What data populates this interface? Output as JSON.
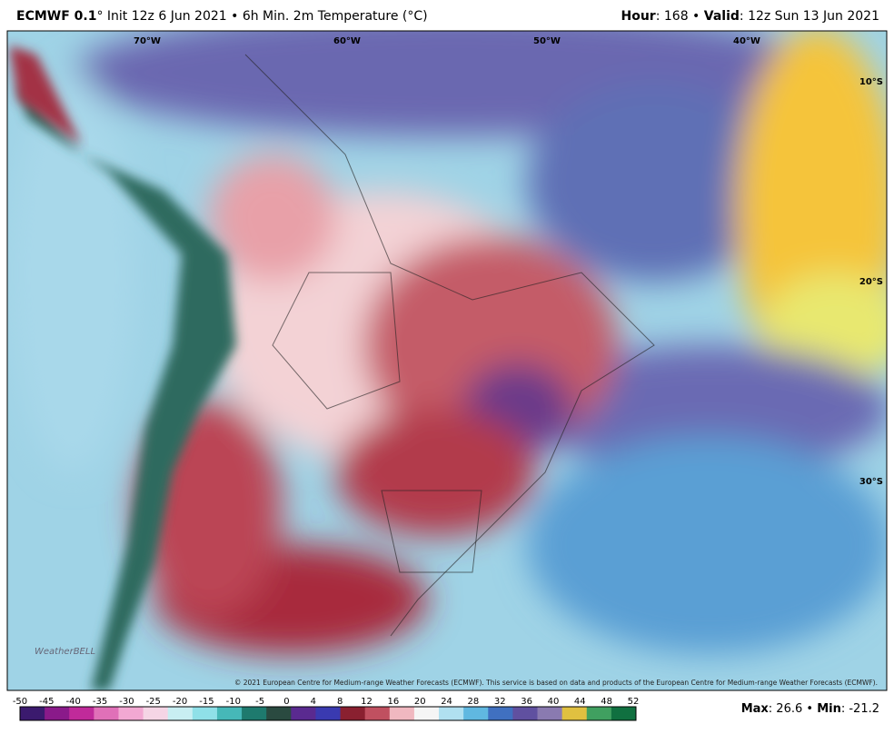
{
  "header": {
    "model": "ECMWF 0.1",
    "title_rest": "° Init 12z 6 Jun 2021 • 6h Min. 2m Temperature (°C)",
    "hour_label": "Hour",
    "hour_text": ": 168 • ",
    "valid_label": "Valid",
    "valid_text": ": 12z Sun 13 Jun 2021"
  },
  "map": {
    "lon_labels": [
      "70°W",
      "60°W",
      "50°W",
      "40°W"
    ],
    "lat_labels": [
      "10°S",
      "20°S",
      "30°S"
    ],
    "logo": "WeatherBELL",
    "copyright": "© 2021 European Centre for Medium-range Weather Forecasts (ECMWF). This service is based on data and products of the European Centre for Medium-range Weather Forecasts (ECMWF)."
  },
  "colorbar": {
    "labels": [
      -50,
      -45,
      -40,
      -35,
      -30,
      -25,
      -20,
      -15,
      -10,
      -5,
      0,
      4,
      8,
      12,
      16,
      20,
      24,
      28,
      32,
      36,
      40,
      44,
      48,
      52
    ]
  },
  "footer": {
    "max_label": "Max",
    "max_text": ": 26.6 • ",
    "min_label": "Min",
    "min_text": ": -21.2"
  }
}
